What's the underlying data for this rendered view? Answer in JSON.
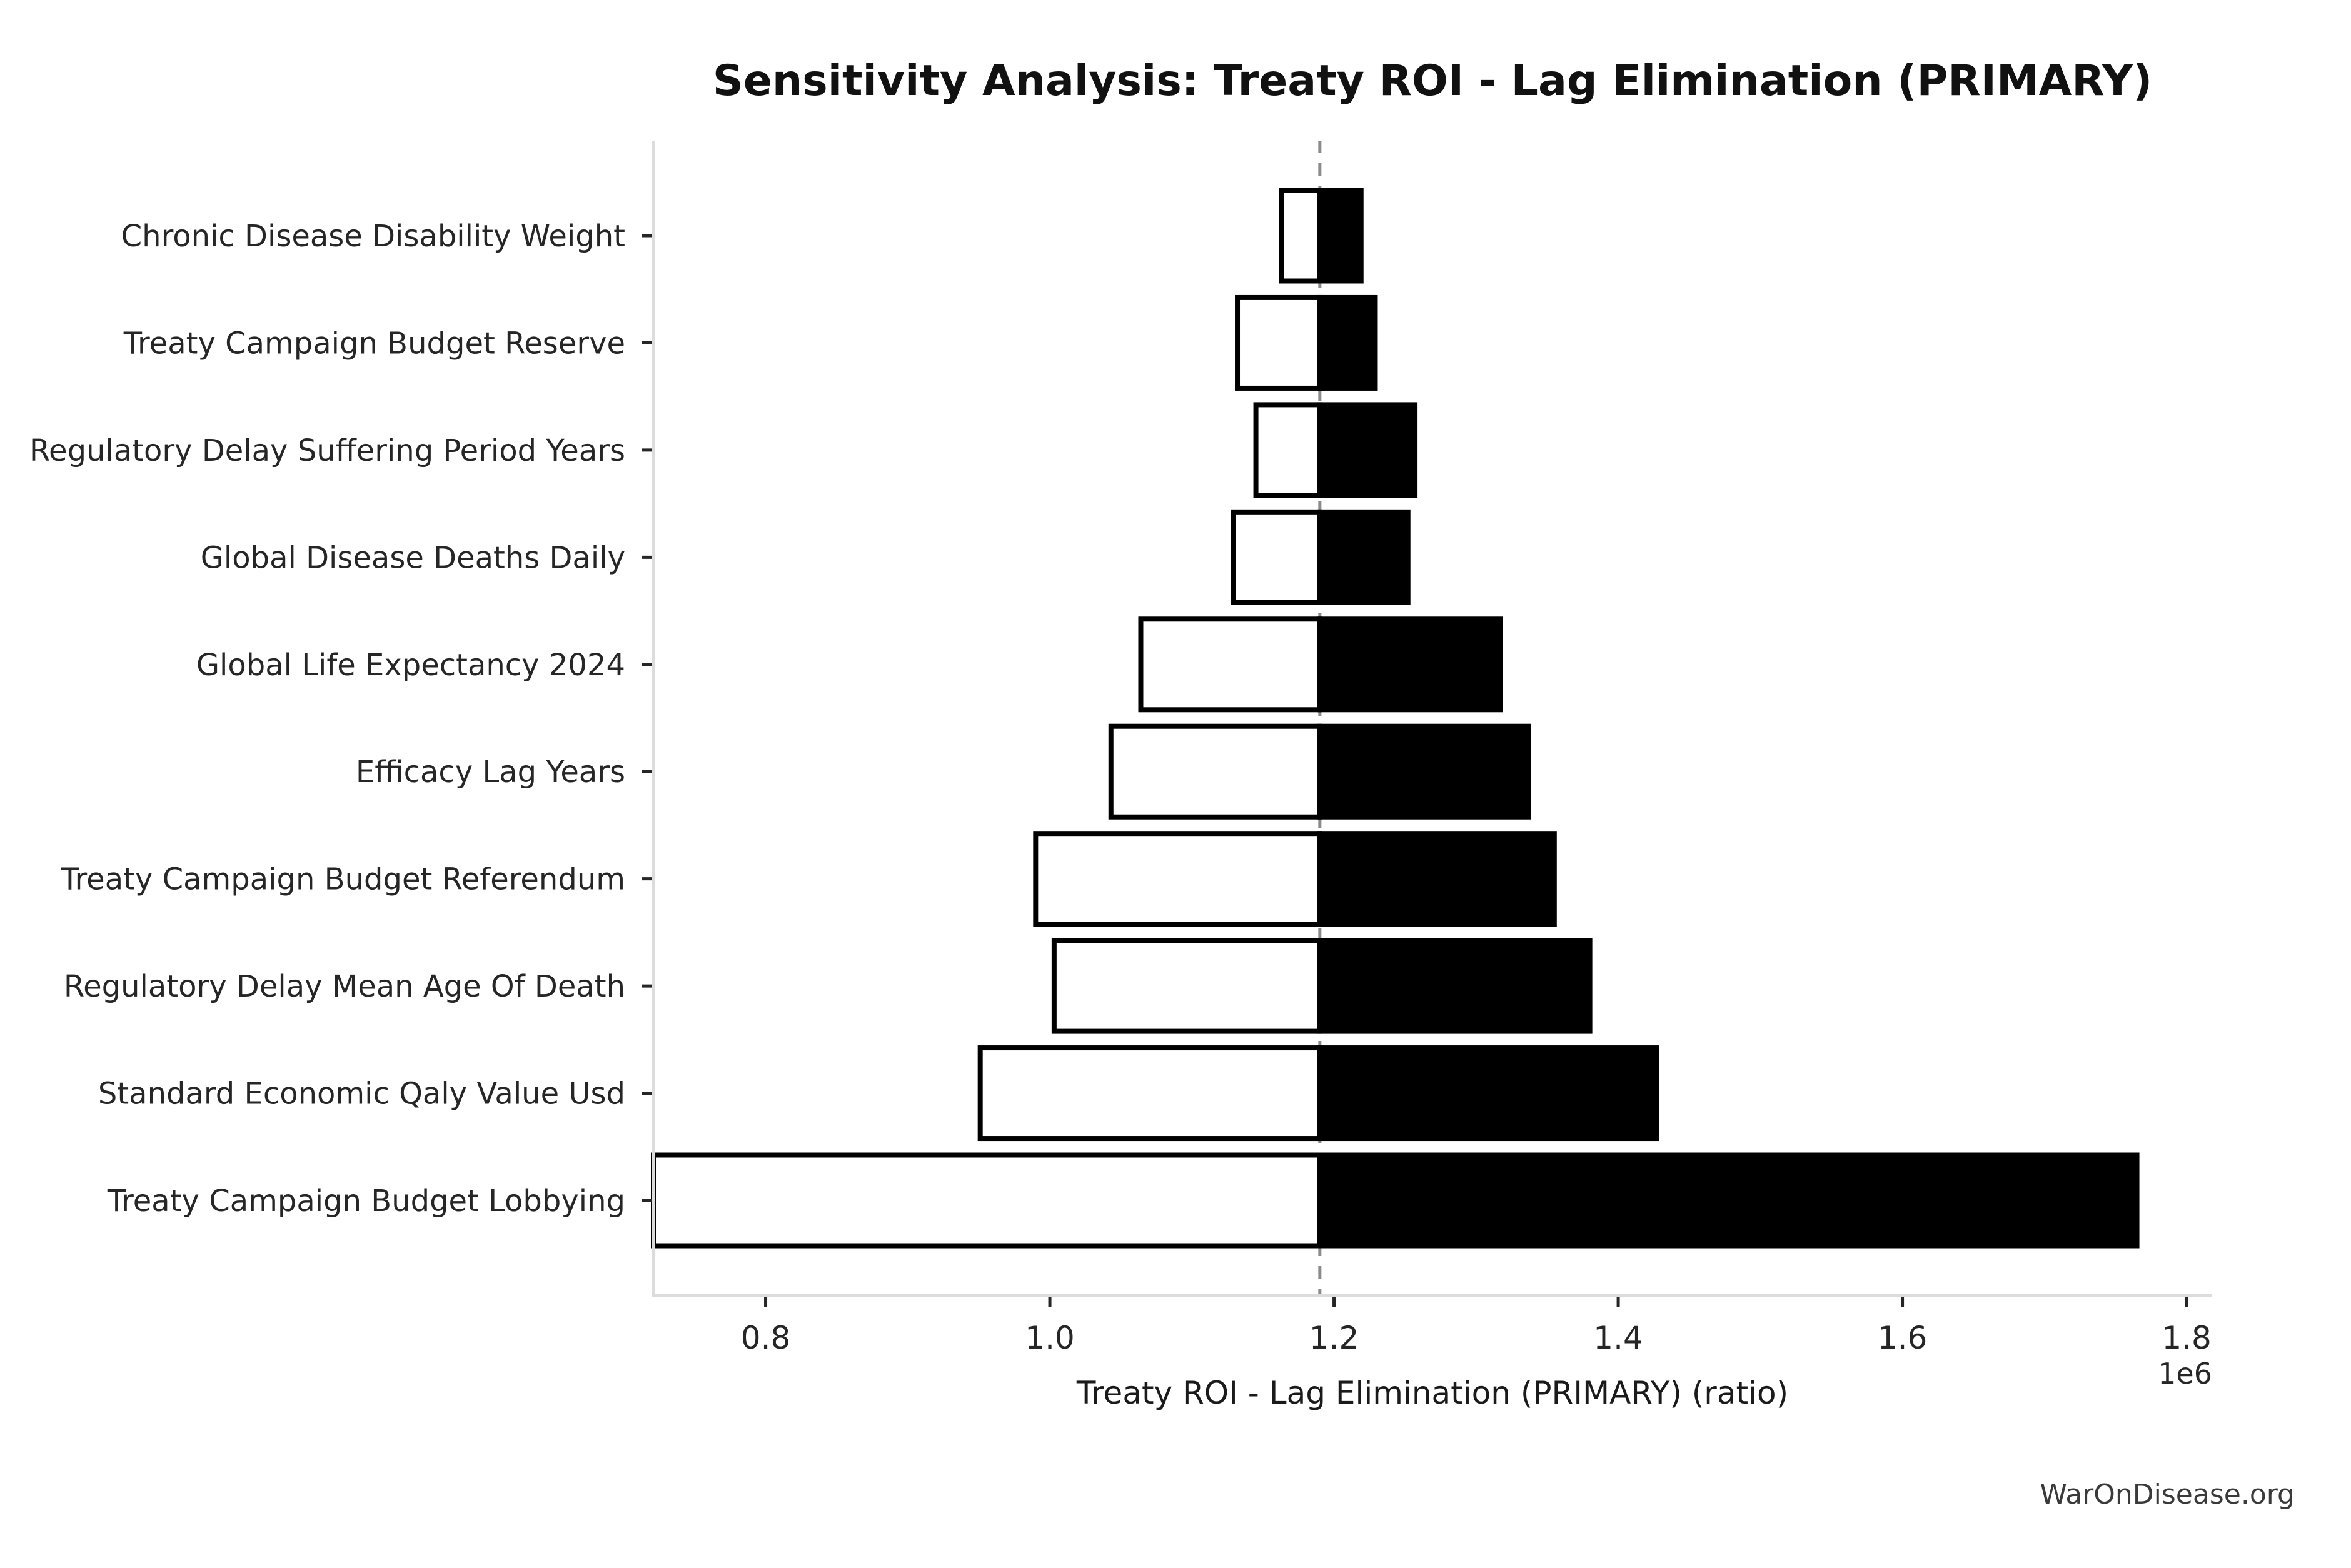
{
  "chart_data": {
    "type": "bar",
    "variant": "tornado-sensitivity",
    "title": "Sensitivity Analysis: Treaty ROI - Lag Elimination (PRIMARY)",
    "xlabel": "Treaty ROI - Lag Elimination (PRIMARY) (ratio)",
    "axis_offset_label": "1e6",
    "watermark": "WarOnDisease.org",
    "baseline": 1190000,
    "xlim": [
      721000,
      1818000
    ],
    "xticks": {
      "values": [
        800000,
        1000000,
        1200000,
        1400000,
        1600000,
        1800000
      ],
      "labels": [
        "0.8",
        "1.0",
        "1.2",
        "1.4",
        "1.6",
        "1.8"
      ]
    },
    "grid": false,
    "legend": "none",
    "categories": [
      "Chronic Disease Disability Weight",
      "Treaty Campaign Budget Reserve",
      "Regulatory Delay Suffering Period Years",
      "Global Disease Deaths Daily",
      "Global Life Expectancy 2024",
      "Efficacy Lag Years",
      "Treaty Campaign Budget Referendum",
      "Regulatory Delay Mean Age Of Death",
      "Standard Economic Qaly Value Usd",
      "Treaty Campaign Budget Lobbying"
    ],
    "series": [
      {
        "name": "low",
        "fill": "#ffffff",
        "values": [
          1163000,
          1132000,
          1145000,
          1129000,
          1064000,
          1043000,
          990000,
          1003000,
          951000,
          721000
        ]
      },
      {
        "name": "high",
        "fill": "#000000",
        "values": [
          1219000,
          1229000,
          1257000,
          1252000,
          1317000,
          1337000,
          1355000,
          1380000,
          1427000,
          1765000
        ]
      }
    ],
    "colors": {
      "bar_edge": "#000000",
      "low_fill": "#ffffff",
      "high_fill": "#000000",
      "baseline_line": "#8a8a8a",
      "spine": "#dcdcdc",
      "tick_mark": "#262626",
      "text": "#1a1a1a",
      "watermark": "#3a3a3a",
      "background": "#ffffff"
    }
  }
}
